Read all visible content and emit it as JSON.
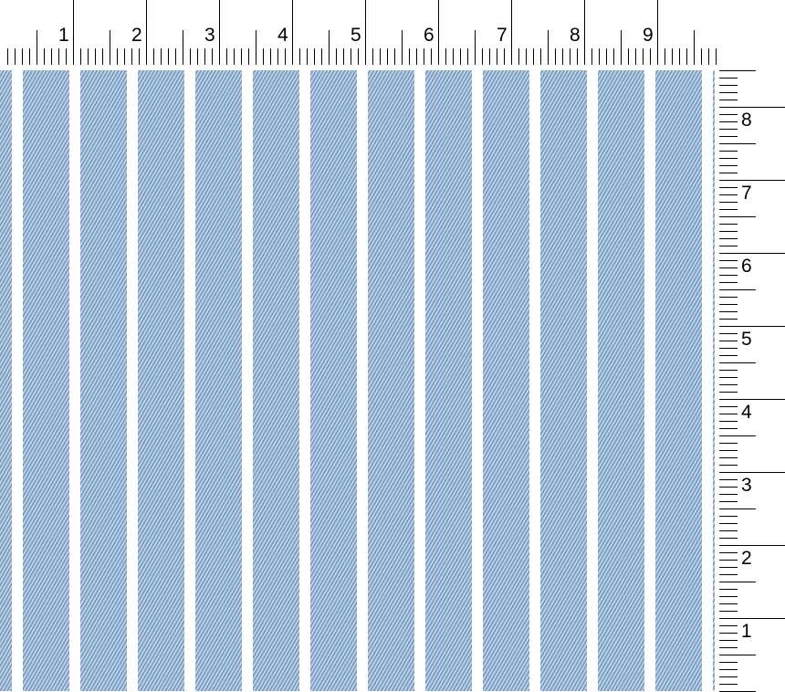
{
  "top_ruler": {
    "labels": [
      "1",
      "2",
      "3",
      "4",
      "5",
      "6",
      "7",
      "8",
      "9"
    ]
  },
  "right_ruler": {
    "labels": [
      "8",
      "7",
      "6",
      "5",
      "4",
      "3",
      "2",
      "1"
    ]
  },
  "fabric": {
    "pattern": "vertical stripes with diagonal twill",
    "stripe_color": "#7c9fc6",
    "highlight_color": "#c9d9ea",
    "gap_color": "#ffffff"
  }
}
